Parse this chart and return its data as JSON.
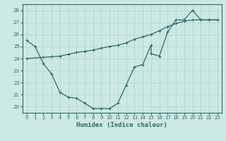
{
  "xlabel": "Humidex (Indice chaleur)",
  "bg_color": "#cce8e8",
  "grid_color": "#b8d8d8",
  "line_color": "#2d6e5e",
  "xlim": [
    -0.5,
    23.5
  ],
  "ylim": [
    19.5,
    28.5
  ],
  "xticks": [
    0,
    1,
    2,
    3,
    4,
    5,
    6,
    7,
    8,
    9,
    10,
    11,
    12,
    13,
    14,
    15,
    16,
    17,
    18,
    19,
    20,
    21,
    22,
    23
  ],
  "yticks": [
    20,
    21,
    22,
    23,
    24,
    25,
    26,
    27,
    28
  ],
  "line1_x": [
    0,
    1,
    2,
    3,
    4,
    5,
    6,
    7,
    8,
    9,
    10,
    11,
    12,
    13,
    14,
    15,
    15,
    16,
    17,
    18,
    19,
    20,
    21,
    22,
    23
  ],
  "line1_y": [
    25.5,
    25.0,
    23.6,
    22.7,
    21.2,
    20.8,
    20.7,
    20.3,
    19.85,
    19.85,
    19.85,
    20.3,
    21.8,
    23.3,
    23.5,
    25.1,
    24.4,
    24.2,
    26.2,
    27.2,
    27.2,
    28.0,
    27.2,
    27.2,
    27.2
  ],
  "line2_x": [
    0,
    2,
    3,
    4,
    5,
    6,
    7,
    8,
    9,
    10,
    11,
    12,
    13,
    14,
    15,
    16,
    17,
    18,
    19,
    20,
    21,
    22,
    23
  ],
  "line2_y": [
    24.0,
    24.1,
    24.15,
    24.2,
    24.35,
    24.5,
    24.6,
    24.7,
    24.85,
    25.0,
    25.1,
    25.3,
    25.6,
    25.8,
    26.0,
    26.3,
    26.65,
    26.9,
    27.1,
    27.2,
    27.2,
    27.2,
    27.2
  ]
}
